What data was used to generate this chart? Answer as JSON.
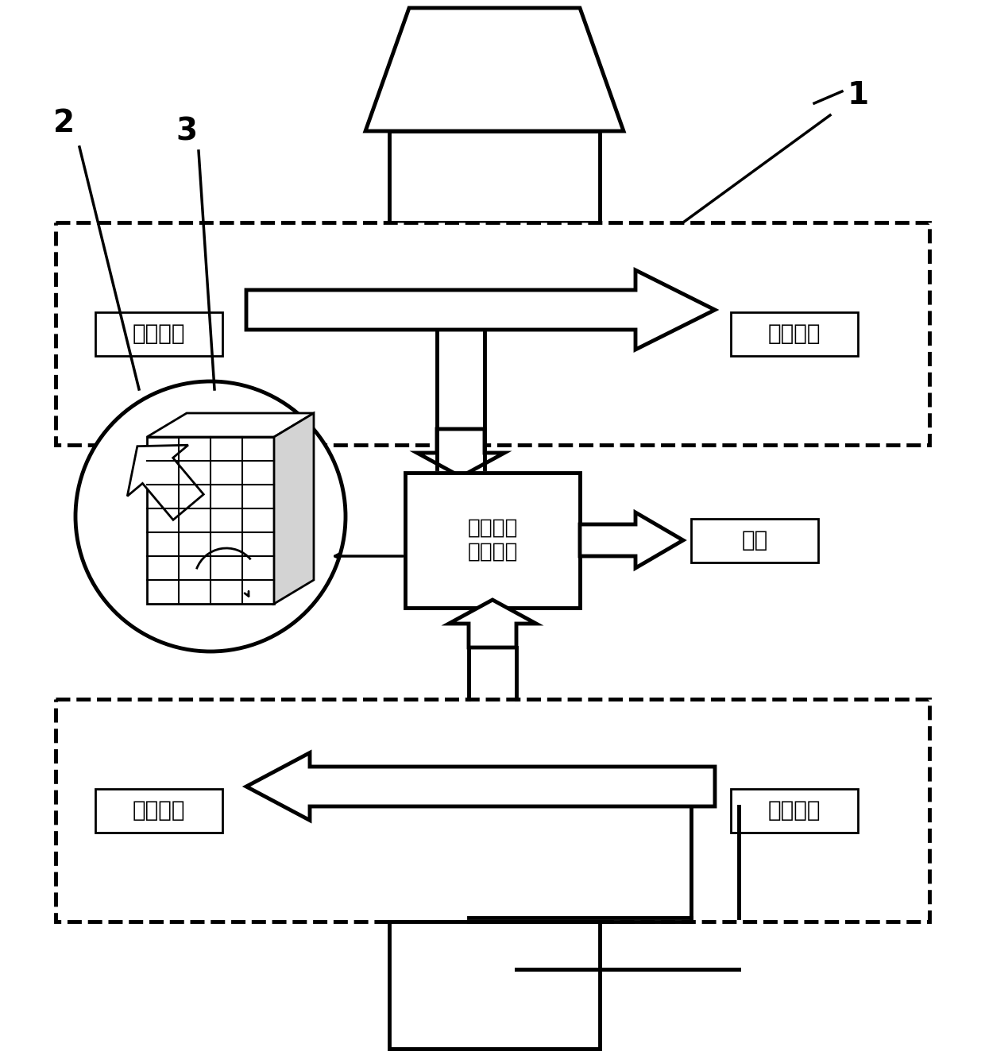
{
  "bg_color": "#ffffff",
  "line_color": "#000000",
  "dashed_color": "#000000",
  "label_1": "1",
  "label_2": "2",
  "label_3": "3",
  "text_high_temp": "高温区域",
  "text_low_temp": "低温区域",
  "text_thermoelectric": "热电材料\n收集能量",
  "text_generate": "发电",
  "text_high_temp2": "高温区域",
  "text_low_temp2": "低温区域"
}
